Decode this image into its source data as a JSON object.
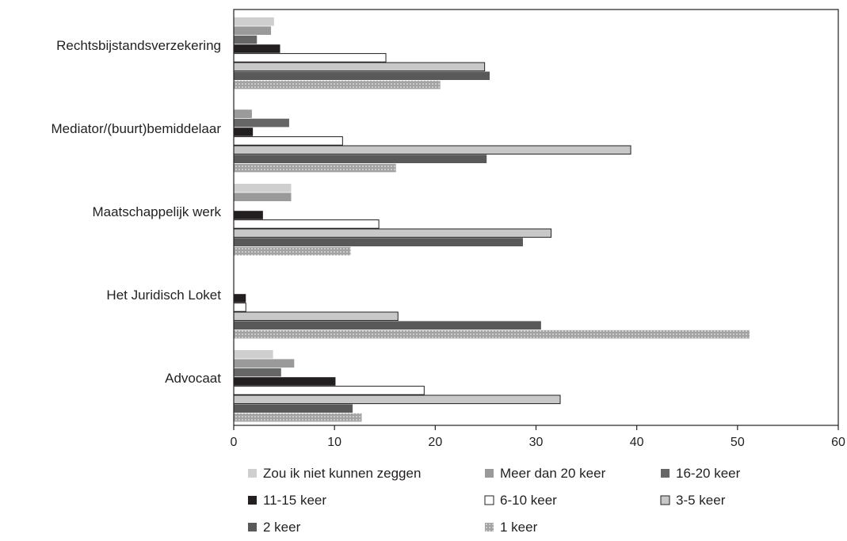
{
  "chart_data": {
    "type": "bar",
    "orientation": "horizontal",
    "title": "",
    "xlabel": "",
    "ylabel": "",
    "xlim": [
      0,
      60
    ],
    "xticks": [
      0,
      10,
      20,
      30,
      40,
      50,
      60
    ],
    "grid": false,
    "legend_position": "bottom",
    "categories": [
      "Rechtsbijstandsverzekering",
      "Mediator/(buurt)bemiddelaar",
      "Maatschappelijk werk",
      "Het Juridisch Loket",
      "Advocaat"
    ],
    "series": [
      {
        "name": "Zou ik niet kunnen zeggen",
        "color": "#cfcfcf",
        "pattern": "solid",
        "values": [
          4.0,
          0,
          5.7,
          0,
          3.9
        ]
      },
      {
        "name": "Meer dan 20 keer",
        "color": "#9a9a9a",
        "pattern": "solid",
        "values": [
          3.7,
          1.8,
          5.7,
          0,
          6.0
        ]
      },
      {
        "name": "16-20 keer",
        "color": "#666666",
        "pattern": "solid",
        "values": [
          2.3,
          5.5,
          0,
          0,
          4.7
        ]
      },
      {
        "name": "11-15 keer",
        "color": "#231f20",
        "pattern": "solid",
        "values": [
          4.6,
          1.9,
          2.9,
          1.2,
          10.1
        ]
      },
      {
        "name": "6-10 keer",
        "color": "#ffffff",
        "pattern": "outline",
        "values": [
          15.1,
          10.8,
          14.4,
          1.2,
          18.9
        ]
      },
      {
        "name": "3-5 keer",
        "color": "#c8c8c8",
        "pattern": "outline",
        "values": [
          24.9,
          39.4,
          31.5,
          16.3,
          32.4
        ]
      },
      {
        "name": "2 keer",
        "color": "#595959",
        "pattern": "solid",
        "values": [
          25.4,
          25.1,
          28.7,
          30.5,
          11.8
        ]
      },
      {
        "name": "1 keer",
        "color": "#a3a3a3",
        "pattern": "dotted",
        "values": [
          20.5,
          16.1,
          11.6,
          51.2,
          12.7
        ]
      }
    ]
  }
}
